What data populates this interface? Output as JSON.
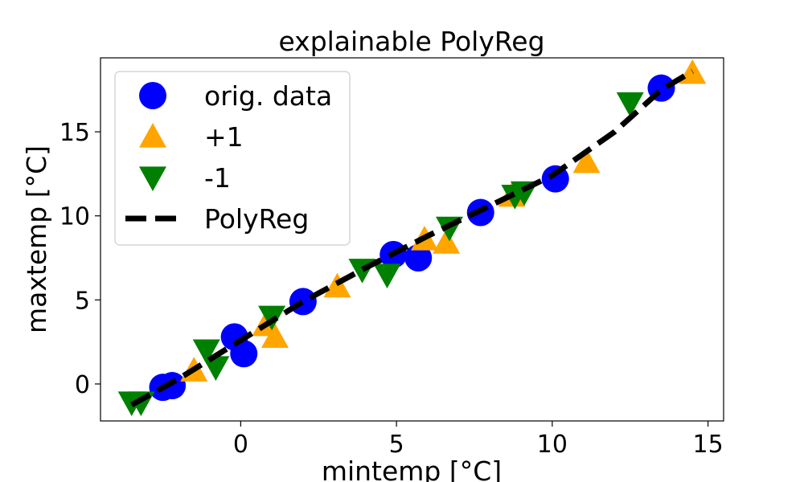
{
  "chart_data": {
    "type": "scatter",
    "title": "explainable PolyReg",
    "xlabel": "mintemp [°C]",
    "ylabel": "maxtemp [°C]",
    "xlim": [
      -4.5,
      15.5
    ],
    "ylim": [
      -2.2,
      19.4
    ],
    "xticks": [
      0,
      5,
      10,
      15
    ],
    "yticks": [
      0,
      5,
      10,
      15
    ],
    "grid": false,
    "legend_position": "top-left",
    "series": [
      {
        "name": "orig. data",
        "kind": "scatter",
        "marker": "circle",
        "color": "#0000ff",
        "points": [
          [
            -2.5,
            -0.2
          ],
          [
            -2.2,
            -0.1
          ],
          [
            -0.2,
            2.8
          ],
          [
            0.1,
            1.8
          ],
          [
            2.0,
            4.9
          ],
          [
            4.9,
            7.7
          ],
          [
            5.7,
            7.5
          ],
          [
            7.7,
            10.2
          ],
          [
            10.1,
            12.2
          ],
          [
            13.5,
            17.6
          ]
        ]
      },
      {
        "name": "+1",
        "kind": "scatter",
        "marker": "triangle-up",
        "color": "#ffa500",
        "points": [
          [
            -1.5,
            0.8
          ],
          [
            0.8,
            3.5
          ],
          [
            1.1,
            2.8
          ],
          [
            3.1,
            5.8
          ],
          [
            5.9,
            8.6
          ],
          [
            6.6,
            8.4
          ],
          [
            8.7,
            11.2
          ],
          [
            11.1,
            13.2
          ],
          [
            14.5,
            18.5
          ]
        ]
      },
      {
        "name": "-1",
        "kind": "scatter",
        "marker": "triangle-down",
        "color": "#008000",
        "points": [
          [
            -3.5,
            -1.1
          ],
          [
            -3.2,
            -1.1
          ],
          [
            -1.1,
            2.0
          ],
          [
            -0.8,
            1.0
          ],
          [
            1.0,
            4.0
          ],
          [
            3.9,
            6.8
          ],
          [
            4.7,
            6.5
          ],
          [
            6.7,
            9.3
          ],
          [
            8.8,
            11.2
          ],
          [
            9.1,
            11.4
          ],
          [
            12.5,
            16.7
          ]
        ]
      },
      {
        "name": "PolyReg",
        "kind": "line",
        "style": "dashed",
        "color": "#000000",
        "points": [
          [
            -3.5,
            -1.25
          ],
          [
            -2.0,
            0.3
          ],
          [
            0.0,
            2.6
          ],
          [
            2.0,
            4.9
          ],
          [
            4.0,
            6.9
          ],
          [
            6.0,
            8.8
          ],
          [
            8.0,
            10.6
          ],
          [
            10.0,
            12.4
          ],
          [
            12.0,
            15.0
          ],
          [
            13.5,
            17.5
          ],
          [
            14.5,
            18.6
          ]
        ]
      }
    ]
  }
}
